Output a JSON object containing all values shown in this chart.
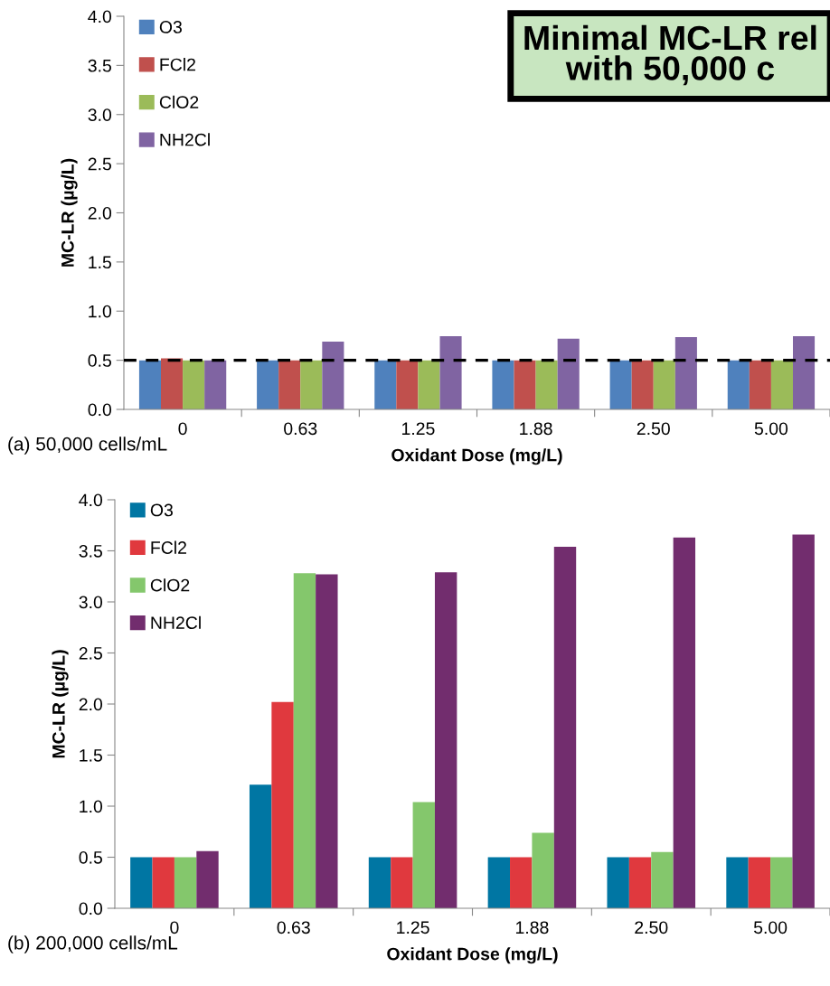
{
  "chart_data": [
    {
      "type": "bar",
      "title": "Minimal MC-LR rel\nwith 50,000 c",
      "xlabel": "Oxidant Dose (mg/L)",
      "ylabel": "MC-LR (µg/L)",
      "categories": [
        "0",
        "0.63",
        "1.25",
        "1.88",
        "2.50",
        "5.00"
      ],
      "series": [
        {
          "name": "O3",
          "color": "#4f81bd",
          "values": [
            0.5,
            0.5,
            0.5,
            0.5,
            0.5,
            0.5
          ]
        },
        {
          "name": "FCl2",
          "color": "#c0504d",
          "values": [
            0.52,
            0.5,
            0.5,
            0.5,
            0.5,
            0.5
          ]
        },
        {
          "name": "ClO2",
          "color": "#9bbb59",
          "values": [
            0.5,
            0.5,
            0.5,
            0.5,
            0.5,
            0.5
          ]
        },
        {
          "name": "NH2Cl",
          "color": "#8064a2",
          "values": [
            0.5,
            0.69,
            0.745,
            0.72,
            0.735,
            0.745
          ]
        }
      ],
      "ylim": [
        0,
        4
      ],
      "yticks": [
        {
          "value": 0,
          "label": "0.0"
        },
        {
          "value": 0.5,
          "label": "0.5"
        },
        {
          "value": 1,
          "label": "1.0"
        },
        {
          "value": 1.5,
          "label": "1.5"
        },
        {
          "value": 2,
          "label": "2.0"
        },
        {
          "value": 2.5,
          "label": "2.5"
        },
        {
          "value": 3,
          "label": "3.0"
        },
        {
          "value": 3.5,
          "label": "3.5"
        },
        {
          "value": 4,
          "label": "4.0"
        }
      ],
      "ref_lines": [
        {
          "axis": "y",
          "value": 0.5,
          "color": "#000000",
          "line_style": "dashed"
        }
      ],
      "annotations": [
        "(a) 50,000 cells/mL"
      ],
      "legend": "top left",
      "grid": false
    },
    {
      "type": "bar",
      "xlabel": "Oxidant Dose (mg/L)",
      "ylabel": "MC-LR (µg/L)",
      "categories": [
        "0",
        "0.63",
        "1.25",
        "1.88",
        "2.50",
        "5.00"
      ],
      "series": [
        {
          "name": "O3",
          "color": "#0076a3",
          "values": [
            0.5,
            1.21,
            0.5,
            0.5,
            0.5,
            0.5
          ]
        },
        {
          "name": "FCl2",
          "color": "#e0393e",
          "values": [
            0.5,
            2.02,
            0.5,
            0.5,
            0.5,
            0.5
          ]
        },
        {
          "name": "ClO2",
          "color": "#84c76c",
          "values": [
            0.5,
            3.28,
            1.04,
            0.74,
            0.55,
            0.5
          ]
        },
        {
          "name": "NH2Cl",
          "color": "#722d6e",
          "values": [
            0.56,
            3.27,
            3.29,
            3.54,
            3.63,
            3.66
          ]
        }
      ],
      "ylim": [
        0,
        4
      ],
      "yticks": [
        {
          "value": 0,
          "label": "0.0"
        },
        {
          "value": 0.5,
          "label": "0.5"
        },
        {
          "value": 1,
          "label": "1.0"
        },
        {
          "value": 1.5,
          "label": "1.5"
        },
        {
          "value": 2,
          "label": "2.0"
        },
        {
          "value": 2.5,
          "label": "2.5"
        },
        {
          "value": 3,
          "label": "3.0"
        },
        {
          "value": 3.5,
          "label": "3.5"
        },
        {
          "value": 4,
          "label": "4.0"
        }
      ],
      "annotations": [
        "(b) 200,000 cells/mL"
      ],
      "legend": "top left",
      "grid": false
    }
  ]
}
